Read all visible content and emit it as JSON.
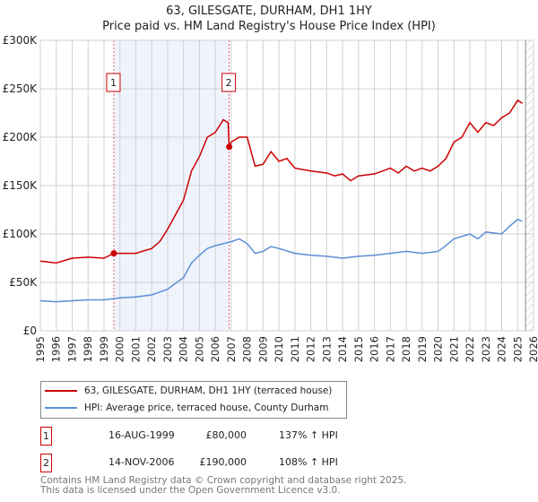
{
  "chart_data": {
    "type": "line",
    "title": "63, GILESGATE, DURHAM, DH1 1HY",
    "subtitle": "Price paid vs. HM Land Registry's House Price Index (HPI)",
    "xlim": [
      1995,
      2026
    ],
    "ylim": [
      0,
      300000
    ],
    "x_ticks": [
      "1995",
      "1996",
      "1997",
      "1998",
      "1999",
      "2000",
      "2001",
      "2002",
      "2003",
      "2004",
      "2005",
      "2006",
      "2007",
      "2008",
      "2009",
      "2010",
      "2011",
      "2012",
      "2013",
      "2014",
      "2015",
      "2016",
      "2017",
      "2018",
      "2019",
      "2020",
      "2021",
      "2022",
      "2023",
      "2024",
      "2025",
      "2026"
    ],
    "y_ticks": [
      {
        "v": 0,
        "label": "£0"
      },
      {
        "v": 50000,
        "label": "£50K"
      },
      {
        "v": 100000,
        "label": "£100K"
      },
      {
        "v": 150000,
        "label": "£150K"
      },
      {
        "v": 200000,
        "label": "£200K"
      },
      {
        "v": 250000,
        "label": "£250K"
      },
      {
        "v": 300000,
        "label": "£300K"
      }
    ],
    "grid": true,
    "series": [
      {
        "name": "63, GILESGATE, DURHAM, DH1 1HY (terraced house)",
        "color": "#cc0000",
        "x": [
          1995,
          1996,
          1997,
          1998,
          1999,
          1999.62,
          2000,
          2001,
          2002,
          2002.5,
          2003,
          2003.5,
          2004,
          2004.5,
          2005,
          2005.5,
          2006,
          2006.5,
          2006.8,
          2006.87,
          2007,
          2007.5,
          2008,
          2008.5,
          2009,
          2009.5,
          2010,
          2010.5,
          2011,
          2012,
          2013,
          2013.5,
          2014,
          2014.5,
          2015,
          2016,
          2016.5,
          2017,
          2017.5,
          2018,
          2018.5,
          2019,
          2019.5,
          2020,
          2020.5,
          2021,
          2021.5,
          2022,
          2022.5,
          2023,
          2023.5,
          2024,
          2024.5,
          2025,
          2025.3
        ],
        "y": [
          72000,
          70000,
          75000,
          76000,
          75000,
          80000,
          80000,
          80000,
          85000,
          92000,
          105000,
          120000,
          135000,
          165000,
          180000,
          200000,
          205000,
          218000,
          215000,
          190000,
          195000,
          200000,
          200000,
          170000,
          172000,
          185000,
          175000,
          178000,
          168000,
          165000,
          163000,
          160000,
          162000,
          155000,
          160000,
          162000,
          165000,
          168000,
          163000,
          170000,
          165000,
          168000,
          165000,
          170000,
          178000,
          195000,
          200000,
          215000,
          205000,
          215000,
          212000,
          220000,
          225000,
          238000,
          235000
        ]
      },
      {
        "name": "HPI: Average price, terraced house, County Durham",
        "color": "#5b8fd6",
        "x": [
          1995,
          1996,
          1997,
          1998,
          1999,
          2000,
          2001,
          2002,
          2003,
          2004,
          2004.5,
          2005,
          2005.5,
          2006,
          2007,
          2007.5,
          2008,
          2008.5,
          2009,
          2009.5,
          2010,
          2011,
          2012,
          2013,
          2014,
          2015,
          2016,
          2017,
          2018,
          2019,
          2020,
          2020.5,
          2021,
          2022,
          2022.5,
          2023,
          2024,
          2024.5,
          2025,
          2025.3
        ],
        "y": [
          31000,
          30000,
          31000,
          32000,
          32000,
          34000,
          35000,
          37000,
          43000,
          55000,
          70000,
          78000,
          85000,
          88000,
          92000,
          95000,
          90000,
          80000,
          82000,
          87000,
          85000,
          80000,
          78000,
          77000,
          75000,
          77000,
          78000,
          80000,
          82000,
          80000,
          82000,
          88000,
          95000,
          100000,
          95000,
          102000,
          100000,
          108000,
          115000,
          113000
        ]
      }
    ],
    "sales": [
      {
        "id": "1",
        "x": 1999.62,
        "price": 80000,
        "date": "16-AUG-1999",
        "price_label": "£80,000",
        "hpi": "137% ↑ HPI"
      },
      {
        "id": "2",
        "x": 2006.87,
        "price": 190000,
        "date": "14-NOV-2006",
        "price_label": "£190,000",
        "hpi": "108% ↑ HPI"
      }
    ],
    "forecast_start": 2025.5
  },
  "legend": [
    "63, GILESGATE, DURHAM, DH1 1HY (terraced house)",
    "HPI: Average price, terraced house, County Durham"
  ],
  "footer": [
    "Contains HM Land Registry data © Crown copyright and database right 2025.",
    "This data is licensed under the Open Government Licence v3.0."
  ]
}
